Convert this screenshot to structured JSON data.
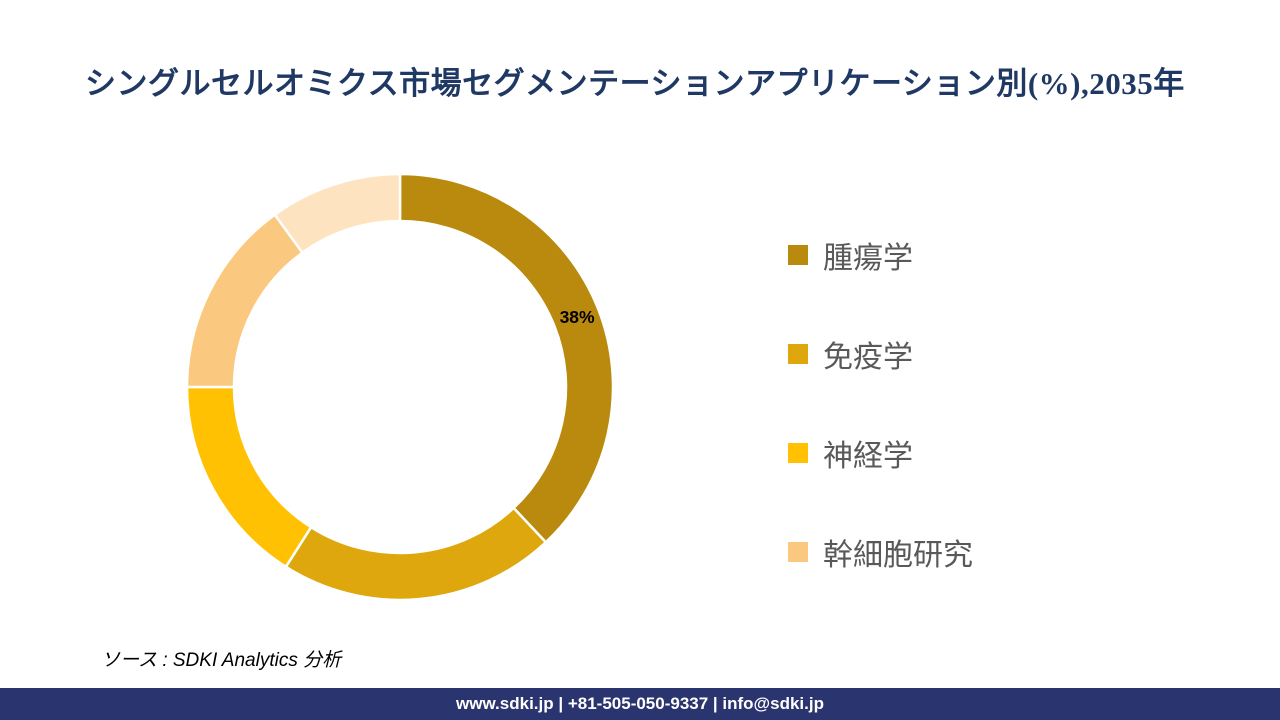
{
  "title": {
    "text": "シングルセルオミクス市場セグメンテーションアプリケーション別(%),2035年",
    "color": "#1F3864"
  },
  "chart_data": {
    "type": "donut",
    "title": "シングルセルオミクス市場セグメンテーションアプリケーション別(%),2035年",
    "unit": "%",
    "start_angle_deg": 0,
    "direction": "clockwise",
    "inner_radius_ratio": 0.78,
    "legend_position": "right",
    "segments": [
      {
        "label": "腫瘍学",
        "value": 38,
        "color": "#B98A0D",
        "data_label": "38%"
      },
      {
        "label": "免疫学",
        "value": 21,
        "color": "#DDA70D",
        "data_label": ""
      },
      {
        "label": "神経学",
        "value": 16,
        "color": "#FFC102",
        "data_label": ""
      },
      {
        "label": "幹細胞研究",
        "value": 15,
        "color": "#FAC87E",
        "data_label": ""
      },
      {
        "label": "",
        "value": 10,
        "color": "#FDE3BF",
        "data_label": ""
      }
    ]
  },
  "legend": {
    "text_color": "#595959",
    "items": [
      {
        "label": "腫瘍学",
        "color": "#B98A0D"
      },
      {
        "label": "免疫学",
        "color": "#DDA70D"
      },
      {
        "label": "神経学",
        "color": "#FFC102"
      },
      {
        "label": "幹細胞研究",
        "color": "#FAC87E"
      }
    ]
  },
  "source": {
    "text": "ソース : SDKI Analytics 分析"
  },
  "footer": {
    "text": "www.sdki.jp | +81-505-050-9337 | info@sdki.jp",
    "background": "#2A346E",
    "text_color": "#FFFFFF"
  }
}
